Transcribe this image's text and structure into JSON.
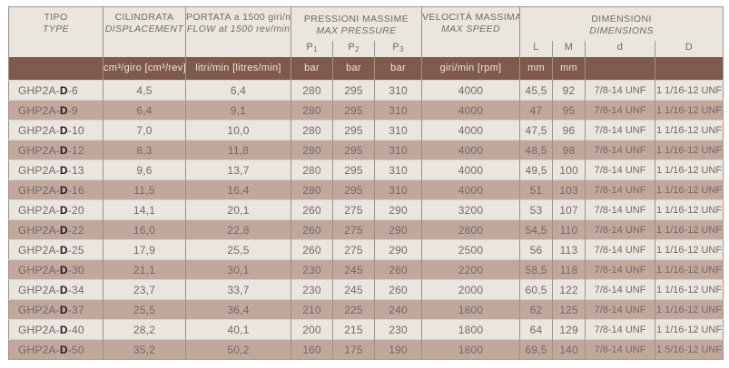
{
  "colors": {
    "brown": "#7d5a49",
    "row_light": "#ebe5df",
    "row_dark": "#c2a89c",
    "text": "#6e6a66",
    "unit_text": "#efe7dd",
    "border": "#9b9289",
    "model_bold": "#1c1c1e"
  },
  "table": {
    "header": {
      "tipo": {
        "line1": "TIPO",
        "line2": "TYPE",
        "unit": ""
      },
      "cilindrata": {
        "line1": "CILINDRATA",
        "line2": "DISPLACEMENT",
        "unit": "cm³/giro [cm³/rev]"
      },
      "portata": {
        "line1": "PORTATA a 1500 giri/min",
        "line2": "FLOW at 1500 rev/min",
        "unit": "litri/min [litres/min]"
      },
      "pressioni": {
        "line1": "PRESSIONI MASSIME",
        "line2": "MAX PRESSURE",
        "subcols": [
          {
            "base": "P",
            "sub": "1",
            "unit": "bar"
          },
          {
            "base": "P",
            "sub": "2",
            "unit": "bar"
          },
          {
            "base": "P",
            "sub": "3",
            "unit": "bar"
          }
        ]
      },
      "velocita": {
        "line1": "VELOCITÀ MASSIMA",
        "line2": "MAX SPEED",
        "unit": "giri/min [rpm]"
      },
      "dimensioni": {
        "line1": "DIMENSIONI",
        "line2": "DIMENSIONS",
        "subcols": [
          {
            "label": "L",
            "unit": "mm"
          },
          {
            "label": "M",
            "unit": "mm"
          },
          {
            "label": "d",
            "unit": ""
          },
          {
            "label": "D",
            "unit": ""
          }
        ]
      }
    },
    "rows": [
      {
        "model": [
          "GHP2A-",
          "D",
          "-6"
        ],
        "values": [
          "4,5",
          "6,4",
          "280",
          "295",
          "310",
          "4000",
          "45,5",
          "92",
          "7/8-14 UNF",
          "1 1/16-12 UNF"
        ]
      },
      {
        "model": [
          "GHP2A-",
          "D",
          "-9"
        ],
        "values": [
          "6,4",
          "9,1",
          "280",
          "295",
          "310",
          "4000",
          "47",
          "95",
          "7/8-14 UNF",
          "1 1/16-12 UNF"
        ]
      },
      {
        "model": [
          "GHP2A-",
          "D",
          "-10"
        ],
        "values": [
          "7,0",
          "10,0",
          "280",
          "295",
          "310",
          "4000",
          "47,5",
          "96",
          "7/8-14 UNF",
          "1 1/16-12 UNF"
        ]
      },
      {
        "model": [
          "GHP2A-",
          "D",
          "-12"
        ],
        "values": [
          "8,3",
          "11,8",
          "280",
          "295",
          "310",
          "4000",
          "48,5",
          "98",
          "7/8-14 UNF",
          "1 1/16-12 UNF"
        ]
      },
      {
        "model": [
          "GHP2A-",
          "D",
          "-13"
        ],
        "values": [
          "9,6",
          "13,7",
          "280",
          "295",
          "310",
          "4000",
          "49,5",
          "100",
          "7/8-14 UNF",
          "1 1/16-12 UNF"
        ]
      },
      {
        "model": [
          "GHP2A-",
          "D",
          "-16"
        ],
        "values": [
          "11,5",
          "16,4",
          "280",
          "295",
          "310",
          "4000",
          "51",
          "103",
          "7/8-14 UNF",
          "1 1/16-12 UNF"
        ]
      },
      {
        "model": [
          "GHP2A-",
          "D",
          "-20"
        ],
        "values": [
          "14,1",
          "20,1",
          "260",
          "275",
          "290",
          "3200",
          "53",
          "107",
          "7/8-14 UNF",
          "1 1/16-12 UNF"
        ]
      },
      {
        "model": [
          "GHP2A-",
          "D",
          "-22"
        ],
        "values": [
          "16,0",
          "22,8",
          "260",
          "275",
          "290",
          "2800",
          "54,5",
          "110",
          "7/8-14 UNF",
          "1 1/16-12 UNF"
        ]
      },
      {
        "model": [
          "GHP2A-",
          "D",
          "-25"
        ],
        "values": [
          "17,9",
          "25,5",
          "260",
          "275",
          "290",
          "2500",
          "56",
          "113",
          "7/8-14 UNF",
          "1 1/16-12 UNF"
        ]
      },
      {
        "model": [
          "GHP2A-",
          "D",
          "-30"
        ],
        "values": [
          "21,1",
          "30,1",
          "230",
          "245",
          "260",
          "2200",
          "58,5",
          "118",
          "7/8-14 UNF",
          "1 1/16-12 UNF"
        ]
      },
      {
        "model": [
          "GHP2A-",
          "D",
          "-34"
        ],
        "values": [
          "23,7",
          "33,7",
          "230",
          "245",
          "260",
          "2000",
          "60,5",
          "122",
          "7/8-14 UNF",
          "1 1/16-12 UNF"
        ]
      },
      {
        "model": [
          "GHP2A-",
          "D",
          "-37"
        ],
        "values": [
          "25,5",
          "36,4",
          "210",
          "225",
          "240",
          "1800",
          "62",
          "125",
          "7/8-14 UNF",
          "1 1/16-12 UNF"
        ]
      },
      {
        "model": [
          "GHP2A-",
          "D",
          "-40"
        ],
        "values": [
          "28,2",
          "40,1",
          "200",
          "215",
          "230",
          "1800",
          "64",
          "129",
          "7/8-14 UNF",
          "1 1/16-12 UNF"
        ]
      },
      {
        "model": [
          "GHP2A-",
          "D",
          "-50"
        ],
        "values": [
          "35,2",
          "50,2",
          "160",
          "175",
          "190",
          "1800",
          "69,5",
          "140",
          "7/8-14 UNF",
          "1 5/16-12 UNF"
        ]
      }
    ]
  }
}
